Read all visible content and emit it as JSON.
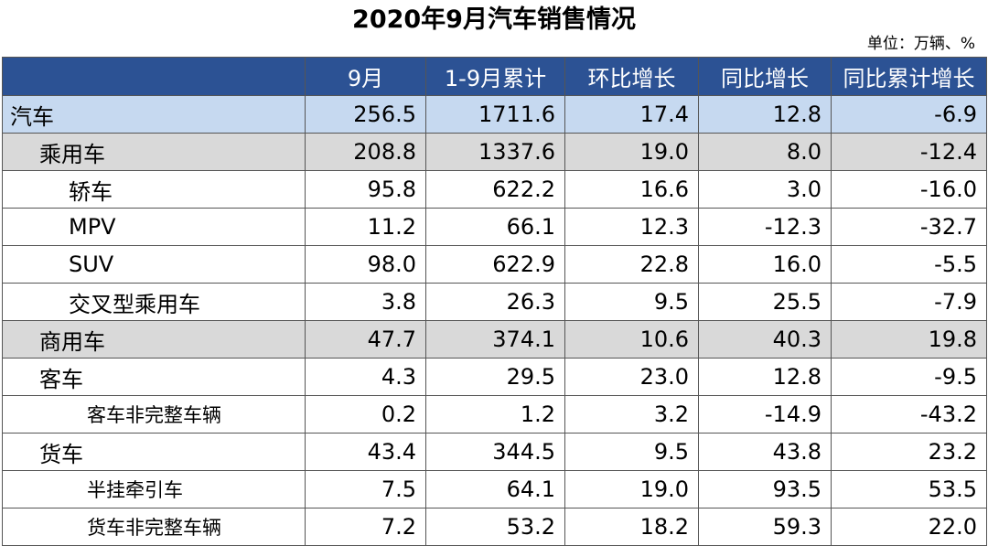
{
  "title": "2020年9月汽车销售情况",
  "unit": "单位：万辆、%",
  "columns": [
    "",
    "9月",
    "1-9月累计",
    "环比增长",
    "同比增长",
    "同比累计增长"
  ],
  "rows": [
    {
      "name": "汽车",
      "level": "lv0",
      "values": [
        "256.5",
        "1711.6",
        "17.4",
        "12.8",
        "-6.9"
      ]
    },
    {
      "name": "乘用车",
      "level": "lv1",
      "values": [
        "208.8",
        "1337.6",
        "19.0",
        "8.0",
        "-12.4"
      ]
    },
    {
      "name": "轿车",
      "level": "lv2",
      "values": [
        "95.8",
        "622.2",
        "16.6",
        "3.0",
        "-16.0"
      ]
    },
    {
      "name": "MPV",
      "level": "lv2",
      "values": [
        "11.2",
        "66.1",
        "12.3",
        "-12.3",
        "-32.7"
      ]
    },
    {
      "name": "SUV",
      "level": "lv2",
      "values": [
        "98.0",
        "622.9",
        "22.8",
        "16.0",
        "-5.5"
      ]
    },
    {
      "name": "交叉型乘用车",
      "level": "lv2",
      "values": [
        "3.8",
        "26.3",
        "9.5",
        "25.5",
        "-7.9"
      ]
    },
    {
      "name": "商用车",
      "level": "lv1",
      "values": [
        "47.7",
        "374.1",
        "10.6",
        "40.3",
        "19.8"
      ]
    },
    {
      "name": "客车",
      "level": "lv2b",
      "values": [
        "4.3",
        "29.5",
        "23.0",
        "12.8",
        "-9.5"
      ]
    },
    {
      "name": "客车非完整车辆",
      "level": "lv3",
      "values": [
        "0.2",
        "1.2",
        "3.2",
        "-14.9",
        "-43.2"
      ]
    },
    {
      "name": "货车",
      "level": "lv2b",
      "values": [
        "43.4",
        "344.5",
        "9.5",
        "43.8",
        "23.2"
      ]
    },
    {
      "name": "半挂牵引车",
      "level": "lv3",
      "values": [
        "7.5",
        "64.1",
        "19.0",
        "93.5",
        "53.5"
      ]
    },
    {
      "name": "货车非完整车辆",
      "level": "lv3",
      "values": [
        "7.2",
        "53.2",
        "18.2",
        "59.3",
        "22.0"
      ]
    }
  ]
}
